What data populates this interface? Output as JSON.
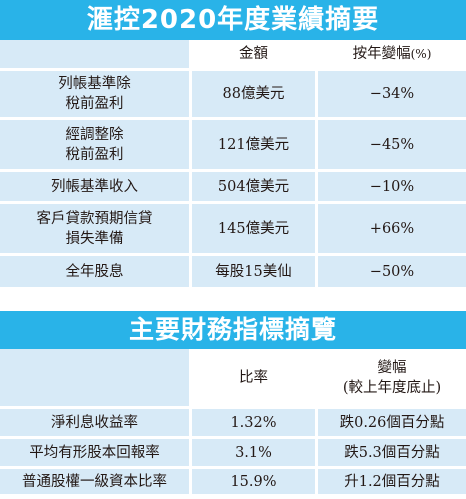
{
  "summary": {
    "title": "滙控2020年度業績摘要",
    "headers": {
      "col1": "",
      "col2": "金額",
      "col3_main": "按年變幅",
      "col3_unit": "(%)"
    },
    "rows": [
      {
        "label_line1": "列帳基準除",
        "label_line2": "稅前盈利",
        "amount": "88億美元",
        "change": "−34%"
      },
      {
        "label_line1": "經調整除",
        "label_line2": "稅前盈利",
        "amount": "121億美元",
        "change": "−45%"
      },
      {
        "label_line1": "列帳基準收入",
        "label_line2": "",
        "amount": "504億美元",
        "change": "−10%"
      },
      {
        "label_line1": "客戶貸款預期信貸",
        "label_line2": "損失準備",
        "amount": "145億美元",
        "change": "+66%"
      },
      {
        "label_line1": "全年股息",
        "label_line2": "",
        "amount": "每股15美仙",
        "change": "−50%"
      }
    ]
  },
  "indicators": {
    "title": "主要財務指標摘覽",
    "headers": {
      "col1": "",
      "col2": "比率",
      "col3_line1": "變幅",
      "col3_line2": "(較上年度底止)"
    },
    "rows": [
      {
        "label": "淨利息收益率",
        "ratio": "1.32%",
        "change": "跌0.26個百分點"
      },
      {
        "label": "平均有形股本回報率",
        "ratio": "3.1%",
        "change": "跌5.3個百分點"
      },
      {
        "label": "普通股權一級資本比率",
        "ratio": "15.9%",
        "change": "升1.2個百分點"
      }
    ]
  }
}
